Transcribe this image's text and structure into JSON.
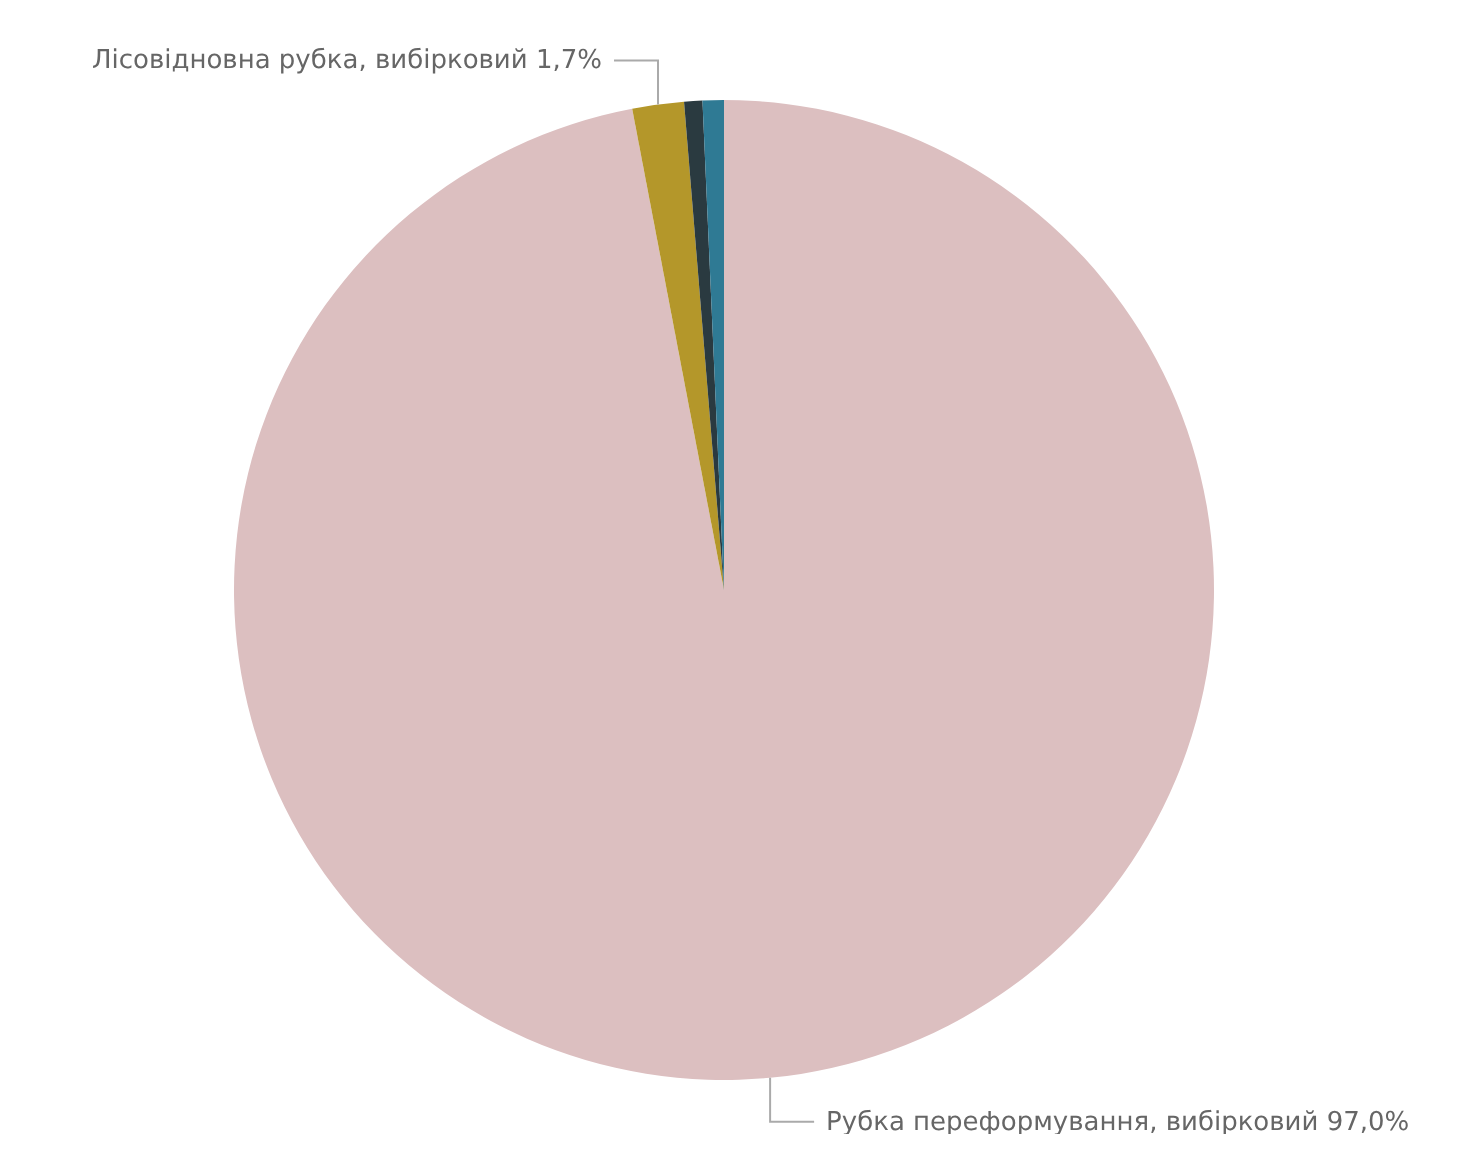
{
  "chart_data": {
    "type": "pie",
    "categories": [
      "Рубка переформування, вибірковий",
      "Лісовідновна рубка, вибірковий",
      null,
      null
    ],
    "values": [
      97.0,
      1.7,
      0.6,
      0.7
    ],
    "value_labels": [
      "97,0%",
      "1,7%",
      null,
      null
    ],
    "colors": [
      "#dcbfc0",
      "#b4972a",
      "#2a3a40",
      "#2f7a94"
    ],
    "legend": false
  }
}
